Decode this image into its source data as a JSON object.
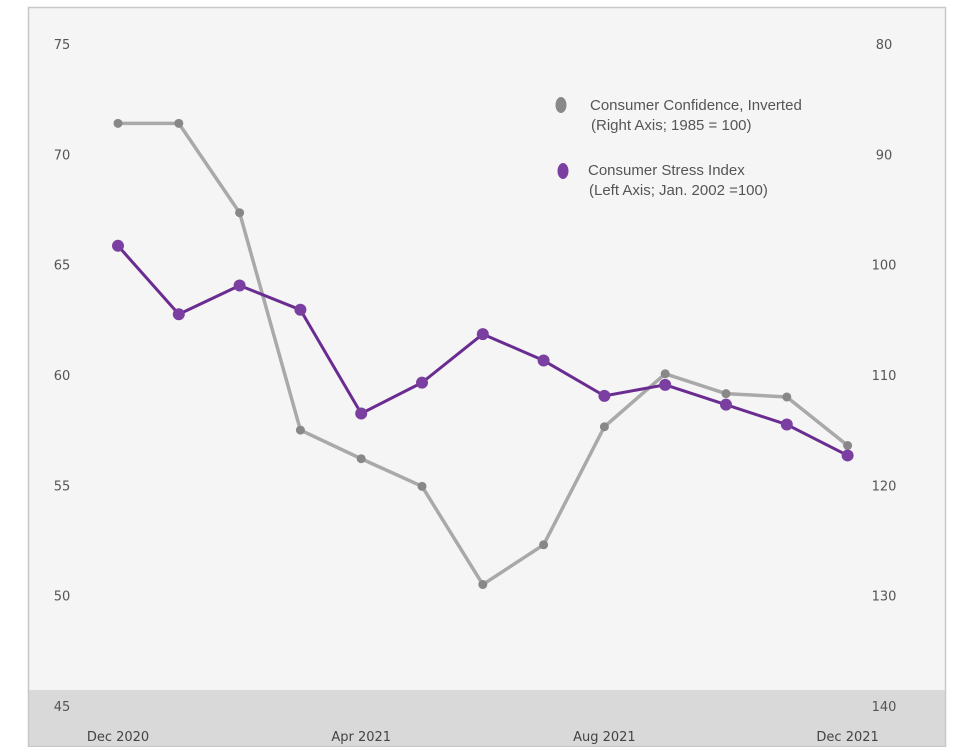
{
  "chart_data": {
    "type": "line",
    "title": "",
    "x": [
      "Dec 2020",
      "Jan 2021",
      "Feb 2021",
      "Mar 2021",
      "Apr 2021",
      "May 2021",
      "Jun 2021",
      "Jul 2021",
      "Aug 2021",
      "Sep 2021",
      "Oct 2021",
      "Nov 2021",
      "Dec 2021"
    ],
    "x_tick_labels": [
      "Dec 2020",
      "Apr 2021",
      "Aug 2021",
      "Dec 2021"
    ],
    "left_axis": {
      "ylim": [
        45,
        75
      ],
      "ticks": [
        "75",
        "70",
        "65",
        "60",
        "55",
        "50",
        "45"
      ]
    },
    "right_axis": {
      "ylim": [
        80,
        140
      ],
      "inverted": true,
      "ticks": [
        "80",
        "90",
        "100",
        "110",
        "120",
        "130",
        "140"
      ]
    },
    "series": [
      {
        "name": "Consumer Confidence, Inverted",
        "name_line2": "(Right Axis; 1985 = 100)",
        "axis": "right",
        "color": "#a9a9a9",
        "marker_color": "#888888",
        "values": [
          87.1,
          87.1,
          95.2,
          114.9,
          117.5,
          120.0,
          128.9,
          125.3,
          114.6,
          109.8,
          111.6,
          111.9,
          116.3
        ]
      },
      {
        "name": "Consumer Stress Index",
        "name_line2": "(Left Axis; Jan. 2002 =100)",
        "axis": "left",
        "color": "#6a2c91",
        "marker_color": "#7a3fa0",
        "values": [
          65.9,
          62.8,
          64.1,
          63.0,
          58.3,
          59.7,
          61.9,
          60.7,
          59.1,
          59.6,
          58.7,
          57.8,
          56.4
        ]
      }
    ],
    "grid": false,
    "legend_position": "top-right",
    "colors": {
      "plot_bg": "#f5f5f5",
      "bottom_band": "#d9d9d9",
      "frame": "#c8c8c8"
    }
  }
}
